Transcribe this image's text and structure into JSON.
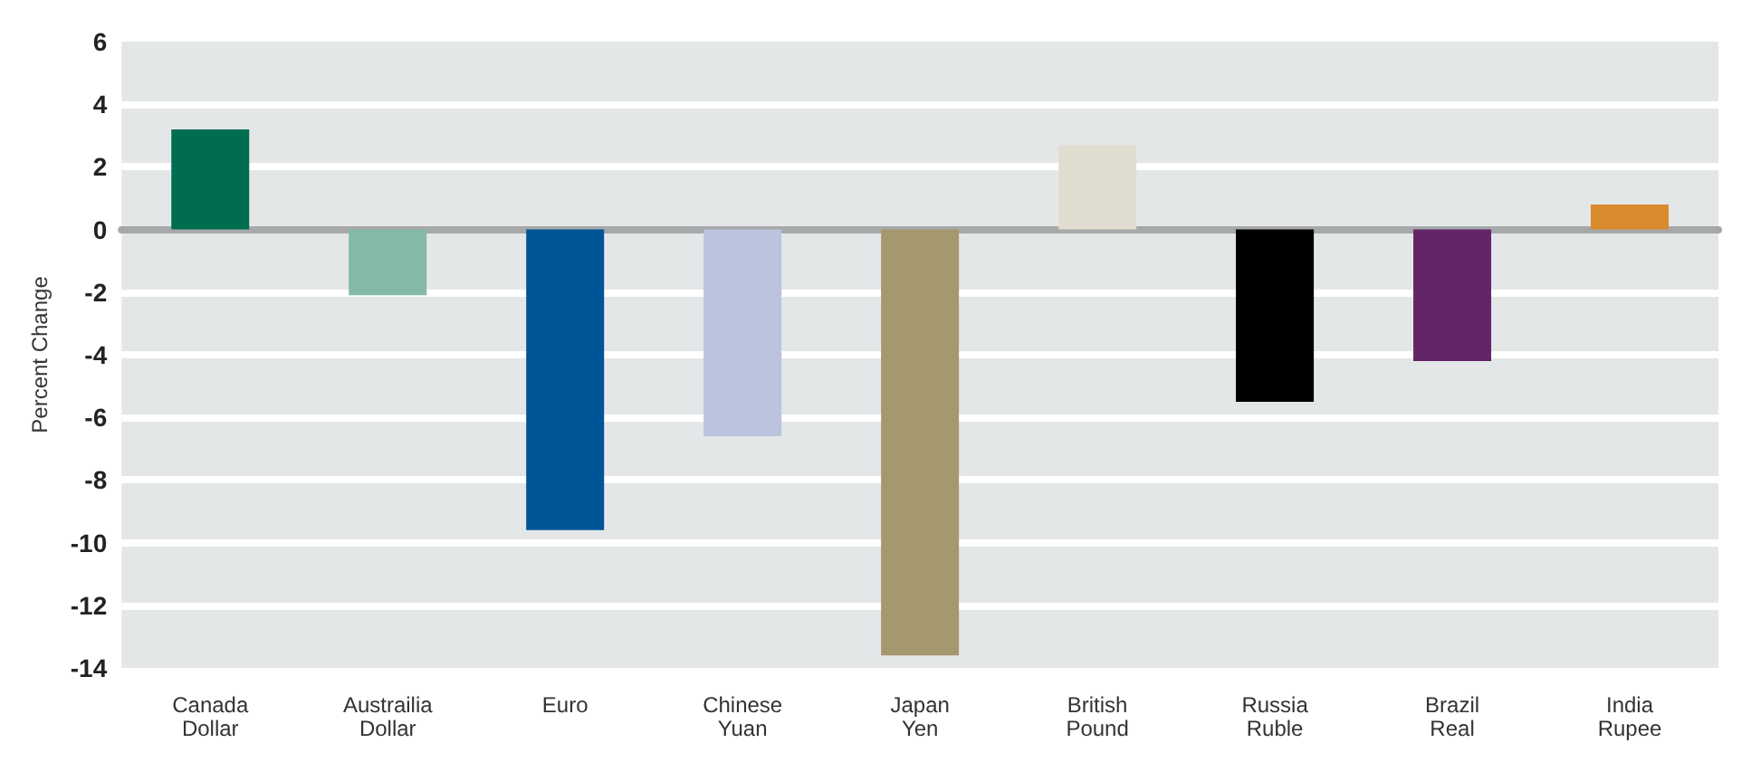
{
  "chart_data": {
    "type": "bar",
    "ylabel": "Percent Change",
    "categories": [
      "Canada\nDollar",
      "Austrailia\nDollar",
      "Euro",
      "Chinese\nYuan",
      "Japan\nYen",
      "British\nPound",
      "Russia\nRuble",
      "Brazil\nReal",
      "India\nRupee"
    ],
    "values": [
      3.2,
      -2.1,
      -9.6,
      -6.6,
      -13.6,
      2.7,
      -5.5,
      -4.2,
      0.8
    ],
    "colors": [
      "#006d50",
      "#84b8a8",
      "#005596",
      "#bcc3de",
      "#a5976e",
      "#e0ddd0",
      "#000000",
      "#622567",
      "#d98a2c"
    ],
    "ylim": [
      -14,
      6
    ],
    "yticks": [
      -14,
      -12,
      -10,
      -8,
      -6,
      -4,
      -2,
      0,
      2,
      4,
      6
    ],
    "grid": "y"
  }
}
